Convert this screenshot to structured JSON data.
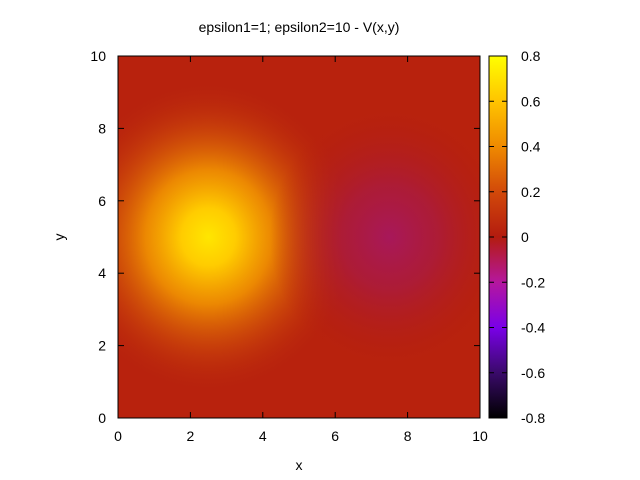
{
  "chart_data": {
    "type": "heatmap",
    "title": "epsilon1=1; epsilon2=10 - V(x,y)",
    "xlabel": "x",
    "ylabel": "y",
    "xlim": [
      0,
      10
    ],
    "ylim": [
      0,
      10
    ],
    "xticks": [
      "0",
      "2",
      "4",
      "6",
      "8",
      "10"
    ],
    "yticks": [
      "0",
      "2",
      "4",
      "6",
      "8",
      "10"
    ],
    "colorbar": {
      "range": [
        -0.8,
        0.8
      ],
      "ticks": [
        "0.8",
        "0.6",
        "0.4",
        "0.2",
        "0",
        "-0.2",
        "-0.4",
        "-0.6",
        "-0.8"
      ],
      "palette": [
        "#000000",
        "#4b0082",
        "#8b00ff",
        "#b5179e",
        "#b31c0f",
        "#d2490a",
        "#f08a00",
        "#ffd000",
        "#ffff00"
      ]
    },
    "extrema": [
      {
        "x": 2.5,
        "y": 5,
        "value": 0.75
      },
      {
        "x": 7.5,
        "y": 5,
        "value": -0.09
      }
    ],
    "grid": false,
    "legend": "colorbar-right"
  }
}
